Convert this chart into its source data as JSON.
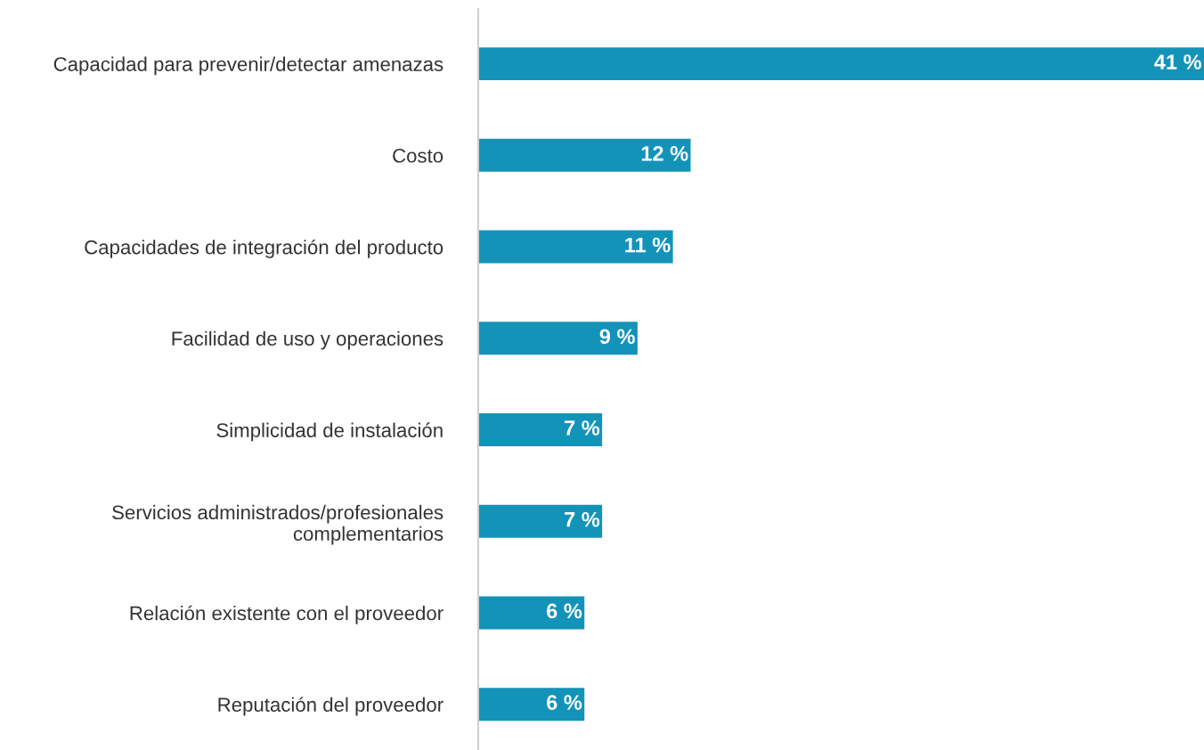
{
  "chart_data": {
    "type": "bar",
    "orientation": "horizontal",
    "categories": [
      "Capacidad para prevenir/detectar amenazas",
      "Costo",
      "Capacidades de integración del producto",
      "Facilidad de uso y operaciones",
      "Simplicidad de instalación",
      "Servicios administrados/profesionales\ncomplementarios",
      "Relación existente con el proveedor",
      "Reputación del proveedor"
    ],
    "values": [
      41,
      12,
      11,
      9,
      7,
      7,
      6,
      6
    ],
    "value_labels": [
      "41 %",
      "12 %",
      "11 %",
      "9 %",
      "7 %",
      "7 %",
      "6 %",
      "6 %"
    ],
    "color": "#1493b9"
  }
}
